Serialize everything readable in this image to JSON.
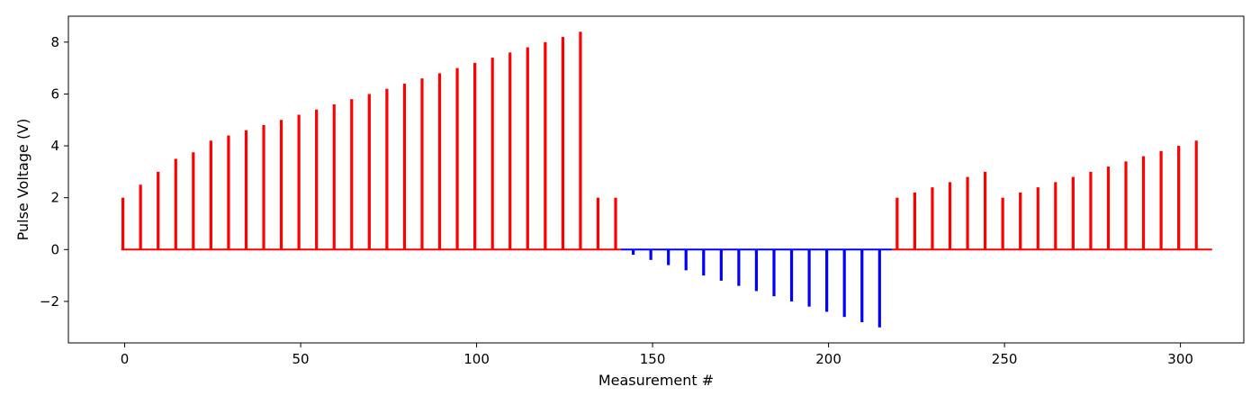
{
  "chart_data": {
    "type": "bar",
    "title": "",
    "xlabel": "Measurement #",
    "ylabel": "Pulse Voltage (V)",
    "xlim": [
      -16,
      318
    ],
    "ylim": [
      -3.6,
      9.0
    ],
    "xticks": [
      0,
      50,
      100,
      150,
      200,
      250,
      300
    ],
    "yticks": [
      -2,
      0,
      2,
      4,
      6,
      8
    ],
    "ytick_labels": [
      "−2",
      "0",
      "2",
      "4",
      "6",
      "8"
    ],
    "grid": false,
    "baseline": {
      "x_start": -1,
      "x_end": 309,
      "value": 0
    },
    "series": [
      {
        "color": "#ff0000",
        "x": [
          -0.5,
          4.5,
          9.5,
          14.5,
          19.5,
          24.5,
          29.5,
          34.5,
          39.5,
          44.5,
          49.5,
          54.5,
          59.5,
          64.5,
          69.5,
          74.5,
          79.5,
          84.5,
          89.5,
          94.5,
          99.5,
          104.5,
          109.5,
          114.5,
          119.5,
          124.5,
          129.5,
          134.5,
          139.5
        ],
        "values": [
          2.0,
          2.5,
          3.0,
          3.5,
          3.75,
          4.2,
          4.4,
          4.6,
          4.8,
          5.0,
          5.2,
          5.4,
          5.6,
          5.8,
          6.0,
          6.2,
          6.4,
          6.6,
          6.8,
          7.0,
          7.2,
          7.4,
          7.6,
          7.8,
          8.0,
          8.2,
          8.4,
          2.0,
          2.0
        ]
      },
      {
        "color": "#0000ff",
        "x": [
          144.5,
          149.5,
          154.5,
          159.5,
          164.5,
          169.5,
          174.5,
          179.5,
          184.5,
          189.5,
          194.5,
          199.5,
          204.5,
          209.5,
          214.5
        ],
        "values": [
          -0.2,
          -0.4,
          -0.6,
          -0.8,
          -1.0,
          -1.2,
          -1.4,
          -1.6,
          -1.8,
          -2.0,
          -2.2,
          -2.4,
          -2.6,
          -2.8,
          -3.0
        ]
      },
      {
        "color": "#ff0000",
        "x": [
          219.5,
          224.5,
          229.5,
          234.5,
          239.5,
          244.5,
          249.5,
          254.5,
          259.5,
          264.5,
          269.5,
          274.5,
          279.5,
          284.5,
          289.5,
          294.5,
          299.5,
          304.5
        ],
        "values": [
          2.0,
          2.2,
          2.4,
          2.6,
          2.8,
          3.0,
          2.0,
          2.2,
          2.4,
          2.6,
          2.8,
          3.0,
          3.2,
          3.4,
          3.6,
          3.8,
          4.0,
          4.2
        ]
      }
    ],
    "baseline_segments": [
      {
        "color": "#ff0000",
        "x_start": -1,
        "x_end": 141
      },
      {
        "color": "#0000ff",
        "x_start": 141,
        "x_end": 218
      },
      {
        "color": "#ff0000",
        "x_start": 218,
        "x_end": 309
      }
    ]
  }
}
